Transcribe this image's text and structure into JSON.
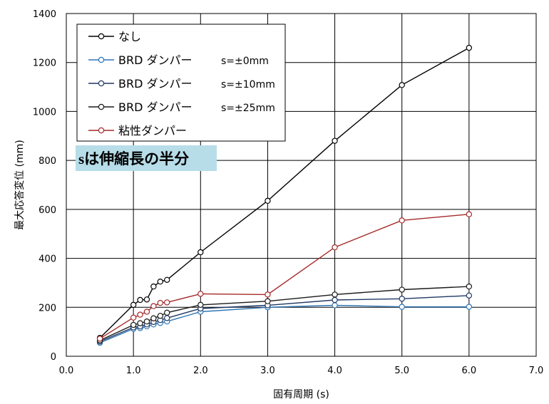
{
  "chart_data": {
    "type": "line",
    "title": "",
    "xlabel": "固有周期 (s)",
    "ylabel": "最大応答変位 (mm)",
    "xlim": [
      0.0,
      7.0
    ],
    "ylim": [
      0,
      1400
    ],
    "grid": true,
    "legend_position": "top-left",
    "x_ticks": [
      "0.0",
      "1.0",
      "2.0",
      "3.0",
      "4.0",
      "5.0",
      "6.0",
      "7.0"
    ],
    "y_ticks": [
      "0",
      "200",
      "400",
      "600",
      "800",
      "1000",
      "1200",
      "1400"
    ],
    "annotation": "sは伸縮長の半分",
    "series": [
      {
        "name": "なし",
        "legend_suffix": "",
        "color": "#000000",
        "points": [
          [
            0.5,
            75
          ],
          [
            1.0,
            210
          ],
          [
            1.1,
            230
          ],
          [
            1.2,
            232
          ],
          [
            1.3,
            285
          ],
          [
            1.4,
            305
          ],
          [
            1.5,
            312
          ],
          [
            2.0,
            425
          ],
          [
            3.0,
            635
          ],
          [
            4.0,
            880
          ],
          [
            5.0,
            1108
          ],
          [
            6.0,
            1260
          ]
        ]
      },
      {
        "name": "BRD ダンパー",
        "legend_suffix": "s=±0mm",
        "color": "#2e75b6",
        "points": [
          [
            0.5,
            55
          ],
          [
            1.0,
            112
          ],
          [
            1.1,
            115
          ],
          [
            1.2,
            122
          ],
          [
            1.3,
            130
          ],
          [
            1.4,
            136
          ],
          [
            1.5,
            142
          ],
          [
            2.0,
            182
          ],
          [
            3.0,
            200
          ],
          [
            4.0,
            208
          ],
          [
            5.0,
            202
          ],
          [
            6.0,
            202
          ]
        ]
      },
      {
        "name": "BRD ダンパー",
        "legend_suffix": "s=±10mm",
        "color": "#1f3864",
        "points": [
          [
            0.5,
            60
          ],
          [
            1.0,
            118
          ],
          [
            1.1,
            122
          ],
          [
            1.2,
            130
          ],
          [
            1.3,
            140
          ],
          [
            1.4,
            148
          ],
          [
            1.5,
            156
          ],
          [
            2.0,
            195
          ],
          [
            3.0,
            208
          ],
          [
            4.0,
            230
          ],
          [
            5.0,
            235
          ],
          [
            6.0,
            248
          ]
        ]
      },
      {
        "name": "BRD ダンパー",
        "legend_suffix": "s=±25mm",
        "color": "#1a1a1a",
        "points": [
          [
            0.5,
            65
          ],
          [
            1.0,
            128
          ],
          [
            1.1,
            135
          ],
          [
            1.2,
            142
          ],
          [
            1.3,
            155
          ],
          [
            1.4,
            165
          ],
          [
            1.5,
            178
          ],
          [
            2.0,
            210
          ],
          [
            3.0,
            225
          ],
          [
            4.0,
            252
          ],
          [
            5.0,
            272
          ],
          [
            6.0,
            285
          ]
        ]
      },
      {
        "name": "粘性ダンパー",
        "legend_suffix": "",
        "color": "#a52a2a",
        "points": [
          [
            0.5,
            72
          ],
          [
            1.0,
            158
          ],
          [
            1.1,
            170
          ],
          [
            1.2,
            182
          ],
          [
            1.3,
            205
          ],
          [
            1.4,
            218
          ],
          [
            1.5,
            220
          ],
          [
            2.0,
            255
          ],
          [
            3.0,
            252
          ],
          [
            4.0,
            445
          ],
          [
            5.0,
            555
          ],
          [
            6.0,
            580
          ]
        ]
      }
    ]
  }
}
